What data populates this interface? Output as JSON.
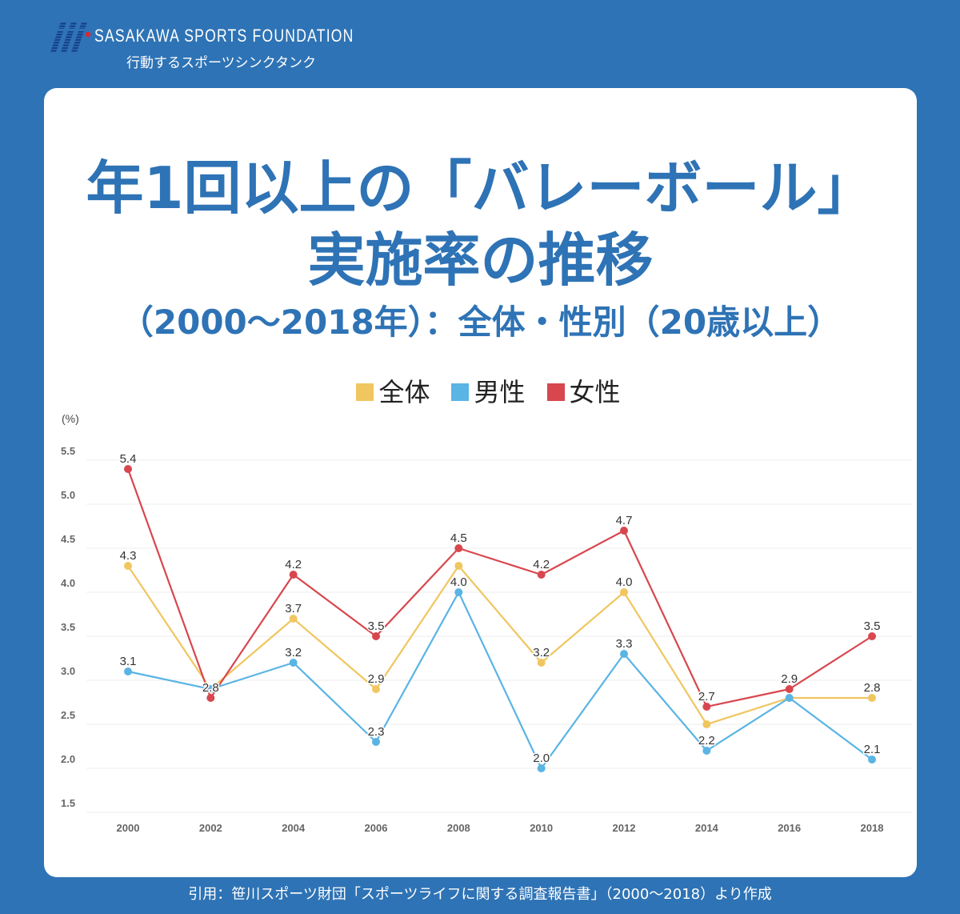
{
  "brand": {
    "name": "SASAKAWA SPORTS FOUNDATION",
    "tagline": "行動するスポーツシンクタンク",
    "logo_icon": "sasakawa-logo-icon"
  },
  "colors": {
    "background": "#2e73b5",
    "title": "#2e73b5",
    "panel": "#ffffff"
  },
  "chart_data": {
    "type": "line",
    "title_lines": [
      "年1回以上の「バレーボール」",
      "実施率の推移"
    ],
    "subtitle": "（2000～2018年）：全体・性別（20歳以上）",
    "xlabel": "",
    "ylabel": "(%)",
    "ylim": [
      1.5,
      5.5
    ],
    "y_ticks": [
      "5.5",
      "5.0",
      "4.5",
      "4.0",
      "3.5",
      "3.0",
      "2.5",
      "2.0",
      "1.5"
    ],
    "categories": [
      "2000",
      "2002",
      "2004",
      "2006",
      "2008",
      "2010",
      "2012",
      "2014",
      "2016",
      "2018"
    ],
    "grid": "horizontal",
    "legend_position": "top-center",
    "series": [
      {
        "name": "全体",
        "color": "#f0c660",
        "values": [
          4.3,
          2.9,
          3.7,
          2.9,
          4.3,
          3.2,
          4.0,
          2.5,
          2.8,
          2.8
        ],
        "data_labels": [
          "4.3",
          null,
          "3.7",
          "2.9",
          null,
          "3.2",
          "4.0",
          null,
          null,
          "2.8"
        ]
      },
      {
        "name": "男性",
        "color": "#5ab4e4",
        "values": [
          3.1,
          2.9,
          3.2,
          2.3,
          4.0,
          2.0,
          3.3,
          2.2,
          2.8,
          2.1
        ],
        "data_labels": [
          "3.1",
          null,
          "3.2",
          "2.3",
          "4.0",
          "2.0",
          "3.3",
          "2.2",
          null,
          "2.1"
        ]
      },
      {
        "name": "女性",
        "color": "#d8474e",
        "values": [
          5.4,
          2.8,
          4.2,
          3.5,
          4.5,
          4.2,
          4.7,
          2.7,
          2.9,
          3.5
        ],
        "data_labels": [
          "5.4",
          "2.8",
          "4.2",
          "3.5",
          "4.5",
          "4.2",
          "4.7",
          "2.7",
          "2.9",
          "3.5"
        ]
      }
    ]
  },
  "footer": {
    "source": "引用：笹川スポーツ財団「スポーツライフに関する調査報告書」（2000～2018）より作成"
  }
}
